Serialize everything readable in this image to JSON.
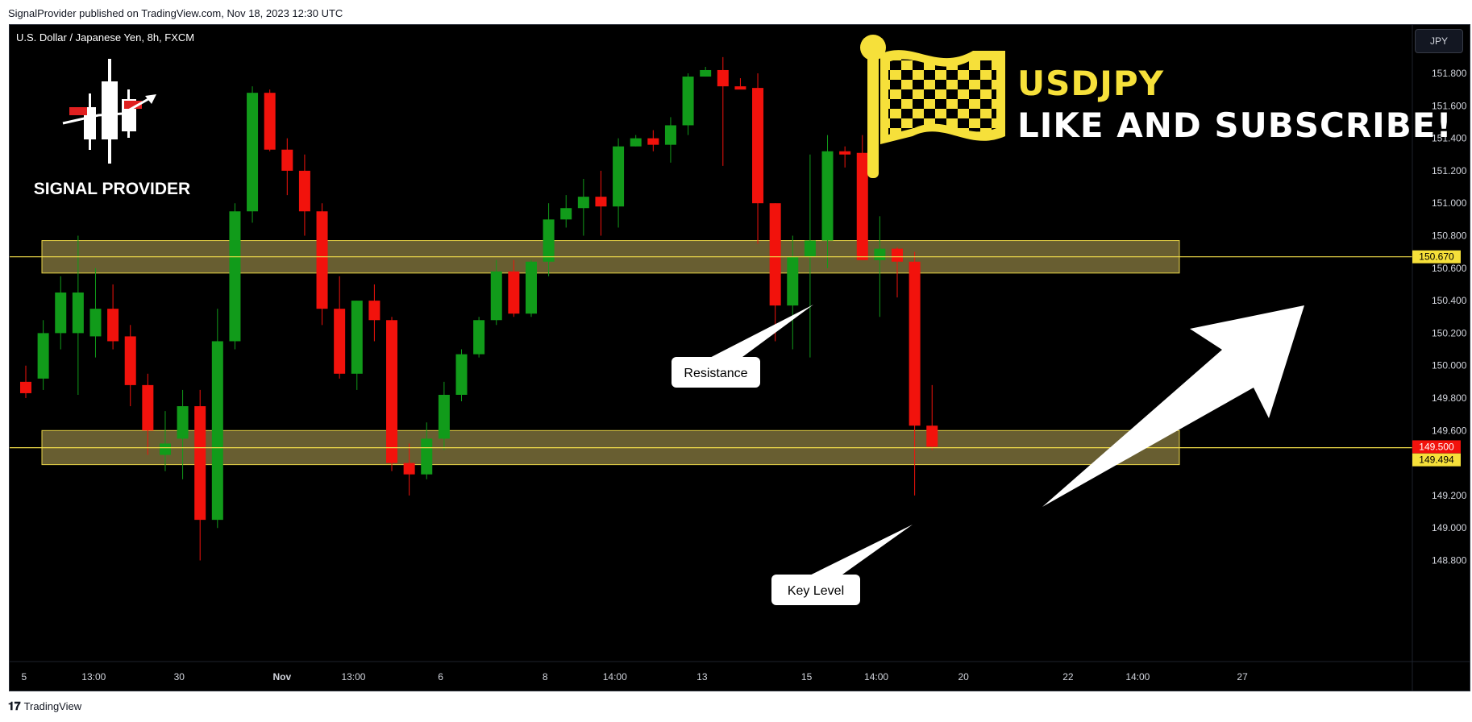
{
  "header": {
    "published_line": "SignalProvider published on TradingView.com, Nov 18, 2023 12:30 UTC"
  },
  "chart_header": {
    "symbol_title": "U.S. Dollar / Japanese Yen, 8h, FXCM",
    "currency": "JPY"
  },
  "brand": {
    "logo_text": "SIGNAL PROVIDER"
  },
  "banner": {
    "title": "USDJPY",
    "subtitle": "LIKE AND SUBSCRIBE!"
  },
  "footer": {
    "tradingview_label": "TradingView"
  },
  "colors": {
    "background": "#000000",
    "up": "#119b1a",
    "down": "#f2120c",
    "zone_fill": "#6e6434",
    "zone_stroke": "#f5e04b",
    "text": "#ffffff",
    "axis_text": "#d1d4dc",
    "flag_yellow": "#f6e03a",
    "price_tag_red": "#f2120c",
    "price_tag_yellow": "#f6e03a"
  },
  "chart_data": {
    "type": "candlestick",
    "symbol": "USDJPY",
    "timeframe": "8h",
    "ylim": [
      148.7,
      152.0
    ],
    "y_ticks": [
      151.8,
      151.6,
      151.4,
      151.2,
      151.0,
      150.8,
      150.6,
      150.4,
      150.2,
      150.0,
      149.8,
      149.6,
      149.2,
      149.0,
      148.8
    ],
    "x_ticks": [
      {
        "label": "5",
        "index": -0.1
      },
      {
        "label": "13:00",
        "index": 3.9
      },
      {
        "label": "30",
        "index": 8.8
      },
      {
        "label": "Nov",
        "index": 14.7
      },
      {
        "label": "13:00",
        "index": 18.8
      },
      {
        "label": "6",
        "index": 23.8
      },
      {
        "label": "8",
        "index": 29.8
      },
      {
        "label": "14:00",
        "index": 33.8
      },
      {
        "label": "13",
        "index": 38.8
      },
      {
        "label": "15",
        "index": 44.8
      },
      {
        "label": "14:00",
        "index": 48.8
      },
      {
        "label": "20",
        "index": 53.8
      },
      {
        "label": "22",
        "index": 59.8
      },
      {
        "label": "14:00",
        "index": 63.8
      },
      {
        "label": "27",
        "index": 69.8
      }
    ],
    "candles": [
      [
        149.9,
        150.0,
        149.8,
        149.83
      ],
      [
        149.92,
        150.28,
        149.85,
        150.2
      ],
      [
        150.2,
        150.55,
        150.1,
        150.45
      ],
      [
        150.2,
        150.8,
        149.82,
        150.45
      ],
      [
        150.18,
        150.6,
        150.05,
        150.35
      ],
      [
        150.35,
        150.5,
        150.1,
        150.15
      ],
      [
        150.18,
        150.25,
        149.75,
        149.88
      ],
      [
        149.88,
        149.95,
        149.45,
        149.6
      ],
      [
        149.45,
        149.72,
        149.35,
        149.52
      ],
      [
        149.55,
        149.85,
        149.3,
        149.75
      ],
      [
        149.75,
        149.85,
        148.8,
        149.05
      ],
      [
        149.05,
        150.35,
        149.0,
        150.15
      ],
      [
        150.15,
        151.0,
        150.1,
        150.95
      ],
      [
        150.95,
        151.72,
        150.88,
        151.68
      ],
      [
        151.68,
        151.7,
        151.32,
        151.33
      ],
      [
        151.33,
        151.4,
        151.05,
        151.2
      ],
      [
        151.2,
        151.3,
        150.8,
        150.95
      ],
      [
        150.95,
        151.0,
        150.25,
        150.35
      ],
      [
        150.35,
        150.55,
        149.92,
        149.95
      ],
      [
        149.95,
        150.4,
        149.85,
        150.4
      ],
      [
        150.4,
        150.5,
        150.15,
        150.28
      ],
      [
        150.28,
        150.3,
        149.35,
        149.4
      ],
      [
        149.4,
        149.52,
        149.2,
        149.33
      ],
      [
        149.33,
        149.65,
        149.3,
        149.55
      ],
      [
        149.55,
        149.9,
        149.48,
        149.82
      ],
      [
        149.82,
        150.1,
        149.78,
        150.07
      ],
      [
        150.07,
        150.3,
        150.05,
        150.28
      ],
      [
        150.28,
        150.65,
        150.25,
        150.58
      ],
      [
        150.58,
        150.65,
        150.3,
        150.32
      ],
      [
        150.32,
        150.65,
        150.3,
        150.64
      ],
      [
        150.64,
        151.0,
        150.55,
        150.9
      ],
      [
        150.9,
        151.05,
        150.85,
        150.97
      ],
      [
        150.97,
        151.15,
        150.8,
        151.04
      ],
      [
        151.04,
        151.2,
        150.8,
        150.98
      ],
      [
        150.98,
        151.4,
        150.85,
        151.35
      ],
      [
        151.35,
        151.42,
        151.35,
        151.4
      ],
      [
        151.4,
        151.45,
        151.32,
        151.36
      ],
      [
        151.36,
        151.53,
        151.25,
        151.48
      ],
      [
        151.48,
        151.8,
        151.42,
        151.78
      ],
      [
        151.78,
        151.84,
        151.78,
        151.82
      ],
      [
        151.82,
        151.9,
        151.23,
        151.72
      ],
      [
        151.72,
        151.77,
        151.72,
        151.7
      ],
      [
        151.71,
        151.8,
        150.75,
        151.0
      ],
      [
        151.0,
        151.0,
        150.15,
        150.37
      ],
      [
        150.37,
        150.8,
        150.1,
        150.67
      ],
      [
        150.67,
        151.3,
        150.05,
        150.77
      ],
      [
        150.77,
        151.42,
        150.6,
        151.32
      ],
      [
        151.32,
        151.35,
        151.22,
        151.3
      ],
      [
        151.31,
        151.42,
        150.65,
        150.65
      ],
      [
        150.65,
        150.92,
        150.3,
        150.72
      ],
      [
        150.72,
        150.73,
        150.42,
        150.64
      ],
      [
        150.64,
        150.7,
        149.2,
        149.63
      ],
      [
        149.63,
        149.88,
        149.48,
        149.5
      ]
    ],
    "zones": [
      {
        "name": "Resistance",
        "top": 150.77,
        "bottom": 150.57,
        "line": 150.67
      },
      {
        "name": "Key Level",
        "top": 149.6,
        "bottom": 149.39,
        "line": 149.494
      }
    ],
    "price_tags": [
      {
        "label": "150.670",
        "value": 150.67,
        "style": "yellow"
      },
      {
        "label": "149.500",
        "value": 149.5,
        "style": "red"
      },
      {
        "label": "149.494",
        "value": 149.494,
        "style": "yellow"
      }
    ],
    "annotations": [
      {
        "text": "Resistance",
        "type": "callout"
      },
      {
        "text": "Key Level",
        "type": "callout"
      },
      {
        "text": "",
        "type": "arrow-up",
        "from_price": 149.5,
        "to_price": 150.55
      }
    ]
  }
}
